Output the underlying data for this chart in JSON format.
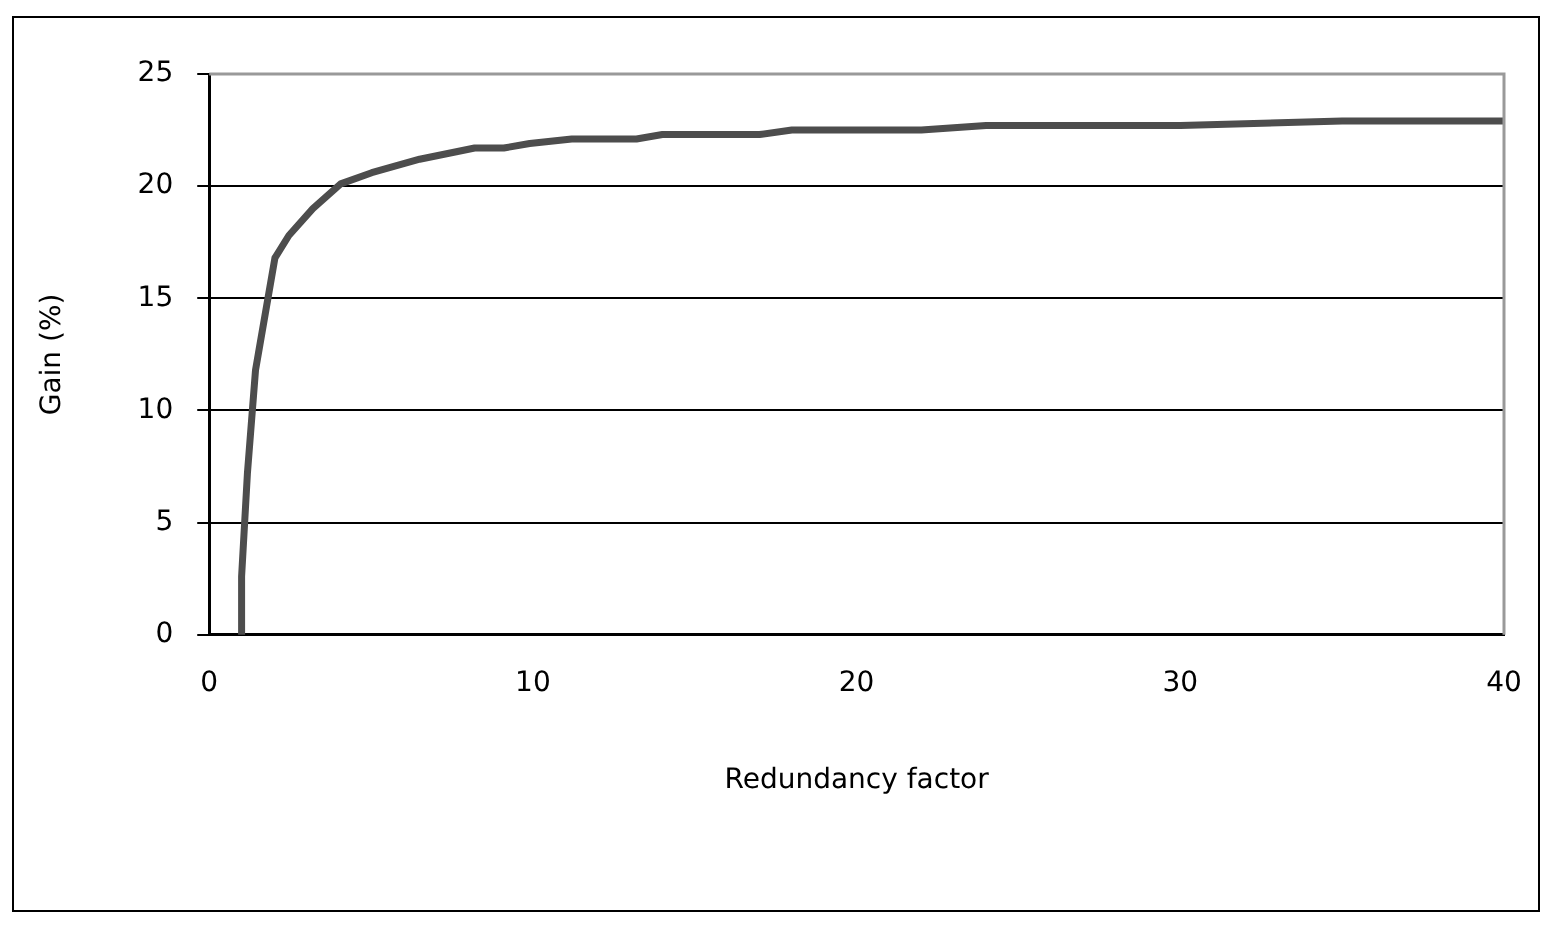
{
  "chart_data": {
    "type": "line",
    "xlabel": "Redundancy factor",
    "ylabel": "Gain (%)",
    "x": [
      1.0,
      1.0,
      1.18,
      1.43,
      2.03,
      2.46,
      3.2,
      4.06,
      5.02,
      6.5,
      8.2,
      9.1,
      9.9,
      11.2,
      13.2,
      14,
      17,
      18,
      22,
      24,
      30,
      35,
      40
    ],
    "series": [
      {
        "color": "#4d4d4d",
        "values": [
          0,
          2.6,
          7.2,
          11.8,
          16.8,
          17.8,
          19.0,
          20.1,
          20.6,
          21.2,
          21.7,
          21.7,
          21.9,
          22.1,
          22.1,
          22.3,
          22.3,
          22.5,
          22.5,
          22.7,
          22.7,
          22.9,
          22.9
        ]
      }
    ],
    "xlim": [
      0,
      40
    ],
    "xticks": [
      0,
      10,
      20,
      30,
      40
    ],
    "ylim": [
      0,
      25
    ],
    "yticks": [
      0,
      5,
      10,
      15,
      20,
      25
    ],
    "grid": "y",
    "legend": false,
    "marker": "none",
    "line_style": "solid"
  }
}
